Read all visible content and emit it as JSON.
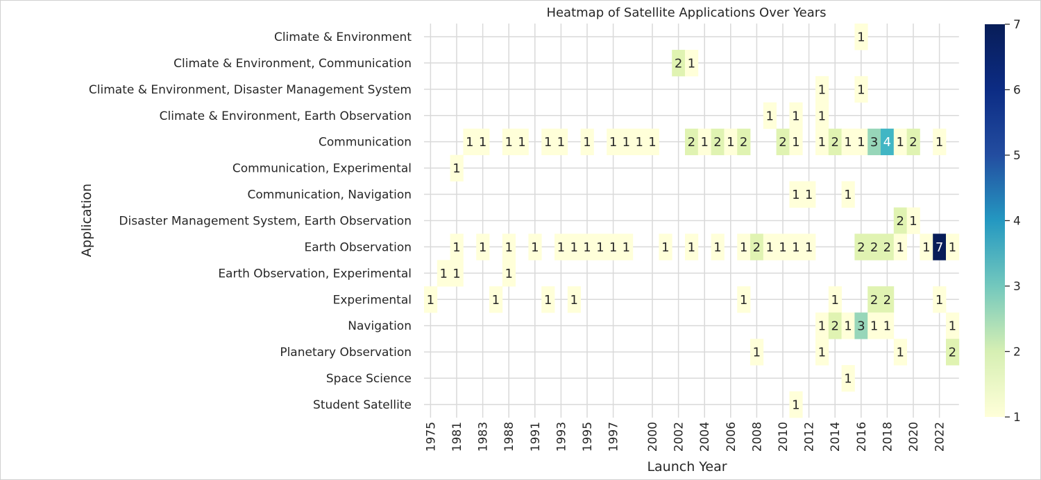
{
  "chart_data": {
    "type": "heatmap",
    "title": "Heatmap of Satellite Applications Over Years",
    "xlabel": "Launch Year",
    "ylabel": "Application",
    "grid": true,
    "colormap": "YlGnBu",
    "colorbar": {
      "min": 1,
      "max": 7,
      "ticks": [
        "1",
        "2",
        "3",
        "4",
        "5",
        "6",
        "7"
      ]
    },
    "years": [
      1975,
      1980,
      1981,
      1982,
      1983,
      1986,
      1988,
      1989,
      1991,
      1992,
      1993,
      1994,
      1995,
      1996,
      1997,
      1998,
      1999,
      2000,
      2001,
      2002,
      2003,
      2004,
      2005,
      2006,
      2007,
      2008,
      2009,
      2010,
      2011,
      2012,
      2013,
      2014,
      2015,
      2016,
      2017,
      2018,
      2019,
      2020,
      2021,
      2022,
      2023
    ],
    "x_tick_labels": [
      "1975",
      "1981",
      "1983",
      "1988",
      "1991",
      "1993",
      "1995",
      "1997",
      "2000",
      "2002",
      "2004",
      "2006",
      "2008",
      "2010",
      "2012",
      "2014",
      "2016",
      "2018",
      "2020",
      "2022"
    ],
    "categories": [
      "Climate & Environment",
      "Climate & Environment, Communication",
      "Climate & Environment, Disaster Management System",
      "Climate & Environment, Earth Observation",
      "Communication",
      "Communication, Experimental",
      "Communication, Navigation",
      "Disaster Management System, Earth Observation",
      "Earth Observation",
      "Earth Observation, Experimental",
      "Experimental",
      "Navigation",
      "Planetary Observation",
      "Space Science",
      "Student Satellite"
    ],
    "cells": [
      {
        "category": "Climate & Environment",
        "year": 2016,
        "value": 1
      },
      {
        "category": "Climate & Environment, Communication",
        "year": 2002,
        "value": 2
      },
      {
        "category": "Climate & Environment, Communication",
        "year": 2003,
        "value": 1
      },
      {
        "category": "Climate & Environment, Disaster Management System",
        "year": 2013,
        "value": 1
      },
      {
        "category": "Climate & Environment, Disaster Management System",
        "year": 2016,
        "value": 1
      },
      {
        "category": "Climate & Environment, Earth Observation",
        "year": 2009,
        "value": 1
      },
      {
        "category": "Climate & Environment, Earth Observation",
        "year": 2011,
        "value": 1
      },
      {
        "category": "Climate & Environment, Earth Observation",
        "year": 2013,
        "value": 1
      },
      {
        "category": "Communication",
        "year": 1982,
        "value": 1
      },
      {
        "category": "Communication",
        "year": 1983,
        "value": 1
      },
      {
        "category": "Communication",
        "year": 1988,
        "value": 1
      },
      {
        "category": "Communication",
        "year": 1989,
        "value": 1
      },
      {
        "category": "Communication",
        "year": 1992,
        "value": 1
      },
      {
        "category": "Communication",
        "year": 1993,
        "value": 1
      },
      {
        "category": "Communication",
        "year": 1995,
        "value": 1
      },
      {
        "category": "Communication",
        "year": 1997,
        "value": 1
      },
      {
        "category": "Communication",
        "year": 1998,
        "value": 1
      },
      {
        "category": "Communication",
        "year": 1999,
        "value": 1
      },
      {
        "category": "Communication",
        "year": 2000,
        "value": 1
      },
      {
        "category": "Communication",
        "year": 2003,
        "value": 2
      },
      {
        "category": "Communication",
        "year": 2004,
        "value": 1
      },
      {
        "category": "Communication",
        "year": 2005,
        "value": 2
      },
      {
        "category": "Communication",
        "year": 2006,
        "value": 1
      },
      {
        "category": "Communication",
        "year": 2007,
        "value": 2
      },
      {
        "category": "Communication",
        "year": 2010,
        "value": 2
      },
      {
        "category": "Communication",
        "year": 2011,
        "value": 1
      },
      {
        "category": "Communication",
        "year": 2013,
        "value": 1
      },
      {
        "category": "Communication",
        "year": 2014,
        "value": 2
      },
      {
        "category": "Communication",
        "year": 2015,
        "value": 1
      },
      {
        "category": "Communication",
        "year": 2016,
        "value": 1
      },
      {
        "category": "Communication",
        "year": 2017,
        "value": 3
      },
      {
        "category": "Communication",
        "year": 2018,
        "value": 4
      },
      {
        "category": "Communication",
        "year": 2019,
        "value": 1
      },
      {
        "category": "Communication",
        "year": 2020,
        "value": 2
      },
      {
        "category": "Communication",
        "year": 2022,
        "value": 1
      },
      {
        "category": "Communication, Experimental",
        "year": 1981,
        "value": 1
      },
      {
        "category": "Communication, Navigation",
        "year": 2011,
        "value": 1
      },
      {
        "category": "Communication, Navigation",
        "year": 2012,
        "value": 1
      },
      {
        "category": "Communication, Navigation",
        "year": 2015,
        "value": 1
      },
      {
        "category": "Disaster Management System, Earth Observation",
        "year": 2019,
        "value": 2
      },
      {
        "category": "Disaster Management System, Earth Observation",
        "year": 2020,
        "value": 1
      },
      {
        "category": "Earth Observation",
        "year": 1981,
        "value": 1
      },
      {
        "category": "Earth Observation",
        "year": 1983,
        "value": 1
      },
      {
        "category": "Earth Observation",
        "year": 1988,
        "value": 1
      },
      {
        "category": "Earth Observation",
        "year": 1991,
        "value": 1
      },
      {
        "category": "Earth Observation",
        "year": 1993,
        "value": 1
      },
      {
        "category": "Earth Observation",
        "year": 1994,
        "value": 1
      },
      {
        "category": "Earth Observation",
        "year": 1995,
        "value": 1
      },
      {
        "category": "Earth Observation",
        "year": 1996,
        "value": 1
      },
      {
        "category": "Earth Observation",
        "year": 1997,
        "value": 1
      },
      {
        "category": "Earth Observation",
        "year": 1998,
        "value": 1
      },
      {
        "category": "Earth Observation",
        "year": 2001,
        "value": 1
      },
      {
        "category": "Earth Observation",
        "year": 2003,
        "value": 1
      },
      {
        "category": "Earth Observation",
        "year": 2005,
        "value": 1
      },
      {
        "category": "Earth Observation",
        "year": 2007,
        "value": 1
      },
      {
        "category": "Earth Observation",
        "year": 2008,
        "value": 2
      },
      {
        "category": "Earth Observation",
        "year": 2009,
        "value": 1
      },
      {
        "category": "Earth Observation",
        "year": 2010,
        "value": 1
      },
      {
        "category": "Earth Observation",
        "year": 2011,
        "value": 1
      },
      {
        "category": "Earth Observation",
        "year": 2012,
        "value": 1
      },
      {
        "category": "Earth Observation",
        "year": 2016,
        "value": 2
      },
      {
        "category": "Earth Observation",
        "year": 2017,
        "value": 2
      },
      {
        "category": "Earth Observation",
        "year": 2018,
        "value": 2
      },
      {
        "category": "Earth Observation",
        "year": 2019,
        "value": 1
      },
      {
        "category": "Earth Observation",
        "year": 2021,
        "value": 1
      },
      {
        "category": "Earth Observation",
        "year": 2022,
        "value": 7
      },
      {
        "category": "Earth Observation",
        "year": 2023,
        "value": 1
      },
      {
        "category": "Earth Observation, Experimental",
        "year": 1980,
        "value": 1
      },
      {
        "category": "Earth Observation, Experimental",
        "year": 1981,
        "value": 1
      },
      {
        "category": "Earth Observation, Experimental",
        "year": 1988,
        "value": 1
      },
      {
        "category": "Experimental",
        "year": 1975,
        "value": 1
      },
      {
        "category": "Experimental",
        "year": 1986,
        "value": 1
      },
      {
        "category": "Experimental",
        "year": 1992,
        "value": 1
      },
      {
        "category": "Experimental",
        "year": 1994,
        "value": 1
      },
      {
        "category": "Experimental",
        "year": 2007,
        "value": 1
      },
      {
        "category": "Experimental",
        "year": 2014,
        "value": 1
      },
      {
        "category": "Experimental",
        "year": 2017,
        "value": 2
      },
      {
        "category": "Experimental",
        "year": 2018,
        "value": 2
      },
      {
        "category": "Experimental",
        "year": 2022,
        "value": 1
      },
      {
        "category": "Navigation",
        "year": 2013,
        "value": 1
      },
      {
        "category": "Navigation",
        "year": 2014,
        "value": 2
      },
      {
        "category": "Navigation",
        "year": 2015,
        "value": 1
      },
      {
        "category": "Navigation",
        "year": 2016,
        "value": 3
      },
      {
        "category": "Navigation",
        "year": 2017,
        "value": 1
      },
      {
        "category": "Navigation",
        "year": 2018,
        "value": 1
      },
      {
        "category": "Navigation",
        "year": 2023,
        "value": 1
      },
      {
        "category": "Planetary Observation",
        "year": 2008,
        "value": 1
      },
      {
        "category": "Planetary Observation",
        "year": 2013,
        "value": 1
      },
      {
        "category": "Planetary Observation",
        "year": 2019,
        "value": 1
      },
      {
        "category": "Planetary Observation",
        "year": 2023,
        "value": 2
      },
      {
        "category": "Space Science",
        "year": 2015,
        "value": 1
      },
      {
        "category": "Student Satellite",
        "year": 2011,
        "value": 1
      }
    ]
  }
}
